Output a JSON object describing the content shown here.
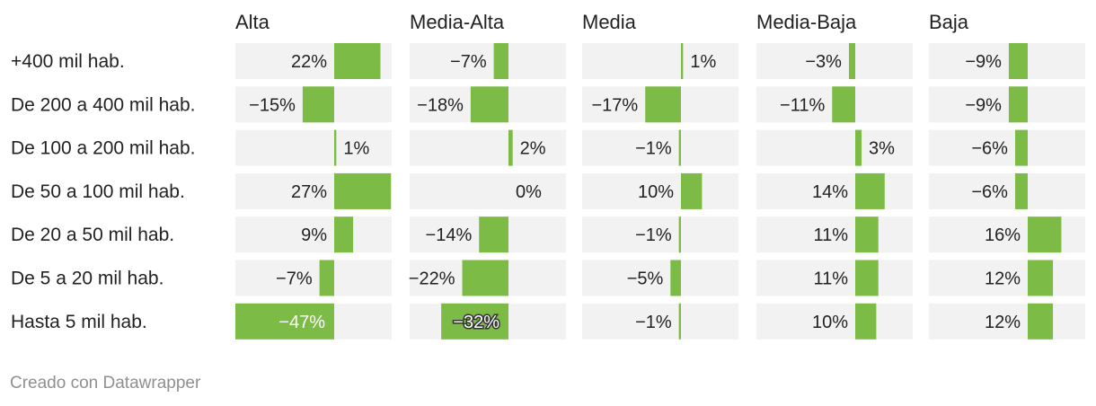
{
  "colors": {
    "bar": "#7cbb45",
    "track": "#f2f2f2",
    "text": "#222222",
    "credit": "#909090"
  },
  "chart_data": {
    "type": "bar",
    "title": "",
    "columns": [
      "Alta",
      "Media-Alta",
      "Media",
      "Media-Baja",
      "Baja"
    ],
    "categories": [
      "+400 mil hab.",
      "De 200 a 400 mil hab.",
      "De 100 a 200 mil hab.",
      "De 50 a 100 mil hab.",
      "De 20 a 50 mil hab.",
      "De 5 a 20 mil hab.",
      "Hasta 5 mil hab."
    ],
    "series": [
      {
        "name": "Alta",
        "values": [
          22,
          -15,
          1,
          27,
          9,
          -7,
          -47
        ],
        "labels": [
          "22%",
          "−15%",
          "1%",
          "27%",
          "9%",
          "−7%",
          "−47%"
        ]
      },
      {
        "name": "Media-Alta",
        "values": [
          -7,
          -18,
          2,
          0,
          -14,
          -22,
          -32
        ],
        "labels": [
          "−7%",
          "−18%",
          "2%",
          "0%",
          "−14%",
          "−22%",
          "−32%"
        ]
      },
      {
        "name": "Media",
        "values": [
          1,
          -17,
          -1,
          10,
          -1,
          -5,
          -1
        ],
        "labels": [
          "1%",
          "−17%",
          "−1%",
          "10%",
          "−1%",
          "−5%",
          "−1%"
        ]
      },
      {
        "name": "Media-Baja",
        "values": [
          -3,
          -11,
          3,
          14,
          11,
          11,
          10
        ],
        "labels": [
          "−3%",
          "−11%",
          "3%",
          "14%",
          "11%",
          "11%",
          "10%"
        ]
      },
      {
        "name": "Baja",
        "values": [
          -9,
          -9,
          -6,
          -6,
          16,
          12,
          12
        ],
        "labels": [
          "−9%",
          "−9%",
          "−6%",
          "−6%",
          "16%",
          "12%",
          "12%"
        ]
      }
    ],
    "xlim": [
      -47,
      27
    ],
    "unit": "%"
  },
  "footer": {
    "credit": "Creado con Datawrapper"
  }
}
